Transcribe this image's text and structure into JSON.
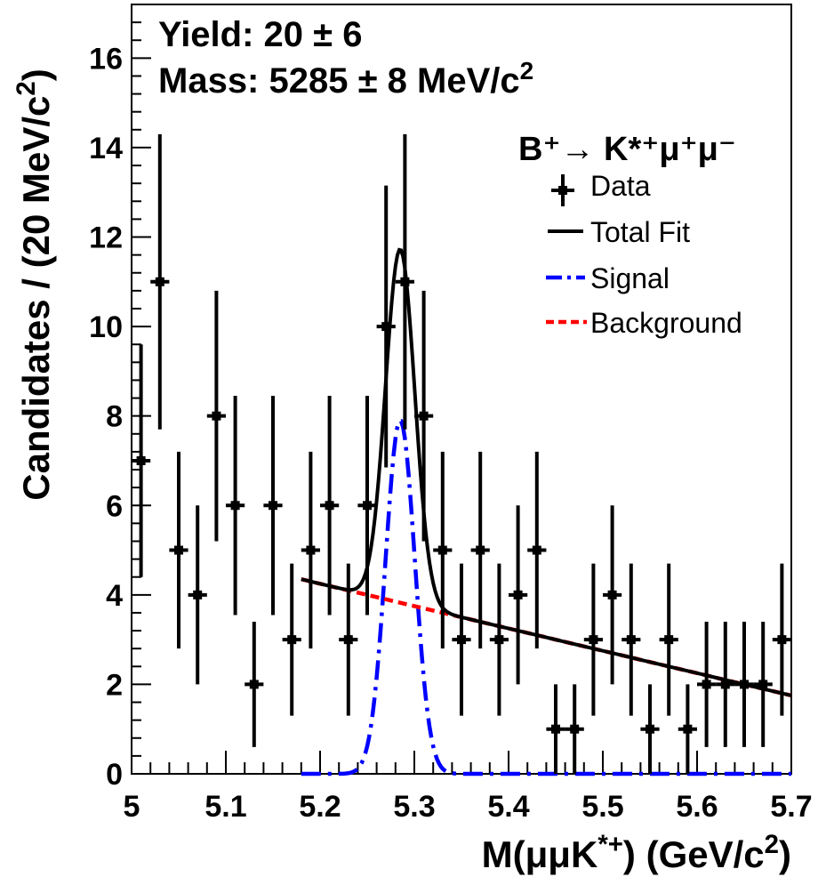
{
  "chart_data": {
    "type": "scatter",
    "xlabel": "M(μμK*+) (GeV/c²)",
    "ylabel": "Candidates / (20 MeV/c²)",
    "xlim": [
      5.0,
      5.7
    ],
    "ylim": [
      0,
      17.2
    ],
    "x_ticks": [
      "5",
      "5.1",
      "5.2",
      "5.3",
      "5.4",
      "5.5",
      "5.6",
      "5.7"
    ],
    "y_ticks": [
      "0",
      "2",
      "4",
      "6",
      "8",
      "10",
      "12",
      "14",
      "16"
    ],
    "annotations": [
      "Yield: 20 ± 6",
      "Mass: 5285 ± 8 MeV/c²"
    ],
    "legend": {
      "title": "B⁺→ K*⁺μ⁺μ⁻",
      "entries": [
        "Data",
        "Total Fit",
        "Signal",
        "Background"
      ],
      "position": "top-right"
    },
    "bin_width": 0.02,
    "data": [
      {
        "x": 5.01,
        "y": 7,
        "err": 2.6
      },
      {
        "x": 5.03,
        "y": 11,
        "err": 3.3
      },
      {
        "x": 5.05,
        "y": 5,
        "err": 2.2
      },
      {
        "x": 5.07,
        "y": 4,
        "err": 2.0
      },
      {
        "x": 5.09,
        "y": 8,
        "err": 2.8
      },
      {
        "x": 5.11,
        "y": 6,
        "err": 2.45
      },
      {
        "x": 5.13,
        "y": 2,
        "err": 1.4
      },
      {
        "x": 5.15,
        "y": 6,
        "err": 2.45
      },
      {
        "x": 5.17,
        "y": 3,
        "err": 1.7
      },
      {
        "x": 5.19,
        "y": 5,
        "err": 2.2
      },
      {
        "x": 5.21,
        "y": 6,
        "err": 2.45
      },
      {
        "x": 5.23,
        "y": 3,
        "err": 1.7
      },
      {
        "x": 5.25,
        "y": 6,
        "err": 2.45
      },
      {
        "x": 5.27,
        "y": 10,
        "err": 3.15
      },
      {
        "x": 5.29,
        "y": 11,
        "err": 3.3
      },
      {
        "x": 5.31,
        "y": 8,
        "err": 2.8
      },
      {
        "x": 5.33,
        "y": 5,
        "err": 2.2
      },
      {
        "x": 5.35,
        "y": 3,
        "err": 1.7
      },
      {
        "x": 5.37,
        "y": 5,
        "err": 2.2
      },
      {
        "x": 5.39,
        "y": 3,
        "err": 1.7
      },
      {
        "x": 5.41,
        "y": 4,
        "err": 2.0
      },
      {
        "x": 5.43,
        "y": 5,
        "err": 2.2
      },
      {
        "x": 5.45,
        "y": 1,
        "err": 1.0
      },
      {
        "x": 5.47,
        "y": 1,
        "err": 1.0
      },
      {
        "x": 5.49,
        "y": 3,
        "err": 1.7
      },
      {
        "x": 5.51,
        "y": 4,
        "err": 2.0
      },
      {
        "x": 5.53,
        "y": 3,
        "err": 1.7
      },
      {
        "x": 5.55,
        "y": 1,
        "err": 1.0
      },
      {
        "x": 5.57,
        "y": 3,
        "err": 1.7
      },
      {
        "x": 5.59,
        "y": 1,
        "err": 1.0
      },
      {
        "x": 5.61,
        "y": 2,
        "err": 1.4
      },
      {
        "x": 5.63,
        "y": 2,
        "err": 1.4
      },
      {
        "x": 5.65,
        "y": 2,
        "err": 1.4
      },
      {
        "x": 5.67,
        "y": 2,
        "err": 1.4
      },
      {
        "x": 5.69,
        "y": 3,
        "err": 1.7
      }
    ],
    "fit_range": [
      5.18,
      5.7
    ],
    "signal": {
      "mean": 5.285,
      "sigma": 0.0155,
      "peak": 7.9,
      "tail_constant": 0.0
    },
    "background": {
      "y_at_5_18": 4.35,
      "y_at_5_70": 1.75
    }
  }
}
